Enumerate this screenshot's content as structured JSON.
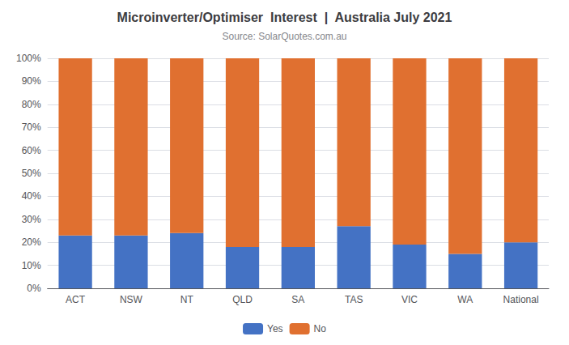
{
  "chart_data": {
    "type": "bar",
    "title": "Microinverter/Optimiser  Interest  |  Australia July 2021",
    "subtitle": "Source: SolarQuotes.com.au",
    "categories": [
      "ACT",
      "NSW",
      "NT",
      "QLD",
      "SA",
      "TAS",
      "VIC",
      "WA",
      "National"
    ],
    "series": [
      {
        "name": "Yes",
        "color": "#4472C4",
        "values": [
          23,
          23,
          24,
          18,
          18,
          27,
          19,
          15,
          20
        ]
      },
      {
        "name": "No",
        "color": "#E07030",
        "values": [
          77,
          77,
          76,
          82,
          82,
          73,
          81,
          85,
          80
        ]
      }
    ],
    "stacked": true,
    "ylim": [
      0,
      100
    ],
    "yticks": [
      {
        "value": 0,
        "label": "0%"
      },
      {
        "value": 10,
        "label": "10%"
      },
      {
        "value": 20,
        "label": "20%"
      },
      {
        "value": 30,
        "label": "30%"
      },
      {
        "value": 40,
        "label": "40%"
      },
      {
        "value": 50,
        "label": "50%"
      },
      {
        "value": 60,
        "label": "60%"
      },
      {
        "value": 70,
        "label": "70%"
      },
      {
        "value": 80,
        "label": "80%"
      },
      {
        "value": 90,
        "label": "90%"
      },
      {
        "value": 100,
        "label": "100%"
      }
    ],
    "grid": true,
    "legend": "bottom"
  }
}
